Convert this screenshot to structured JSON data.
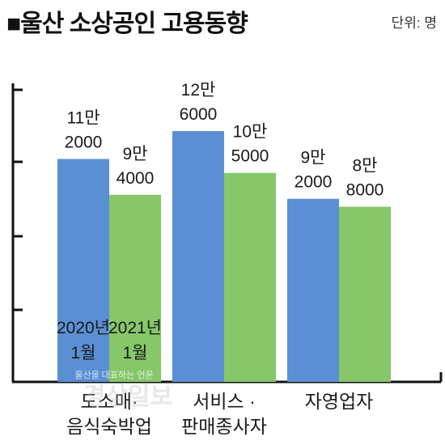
{
  "header": {
    "title": "■울산 소상공인 고용동향",
    "unit": "단위: 명"
  },
  "chart_data": {
    "type": "bar",
    "title": "■울산 소상공인 고용동향",
    "ylabel": "",
    "xlabel": "",
    "ylim": [
      0,
      150000
    ],
    "categories": [
      {
        "lines": [
          "도소매·",
          "음식숙박업"
        ]
      },
      {
        "lines": [
          "서비스 ·",
          "판매종사자"
        ]
      },
      {
        "lines": [
          "자영업자"
        ]
      }
    ],
    "series": [
      {
        "name": "2020년 1월",
        "name_lines": [
          "2020년",
          "1월"
        ],
        "color": "#5b8fd4",
        "values": [
          112000,
          126000,
          92000
        ],
        "labels": [
          [
            "11만",
            "2000"
          ],
          [
            "12만",
            "6000"
          ],
          [
            "9만",
            "2000"
          ]
        ]
      },
      {
        "name": "2021년 1월",
        "name_lines": [
          "2021년",
          "1월"
        ],
        "color": "#86c76a",
        "values": [
          94000,
          105000,
          88000
        ],
        "labels": [
          [
            "9만",
            "4000"
          ],
          [
            "10만",
            "5000"
          ],
          [
            "8만",
            "8000"
          ]
        ]
      }
    ],
    "legend": "inside-bars-bottom",
    "grid": false
  },
  "watermark": {
    "small": "울산을 대표하는 언론",
    "large": "경상일보"
  }
}
